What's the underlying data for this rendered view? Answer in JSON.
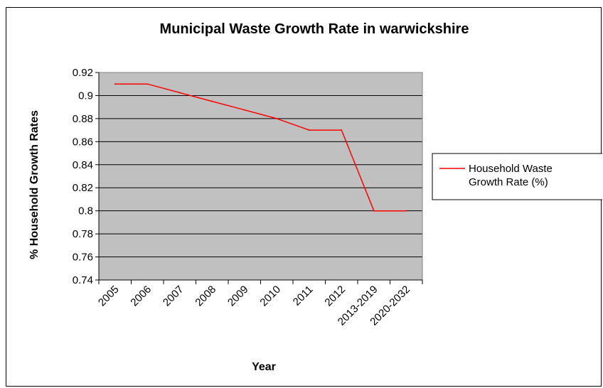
{
  "chart_data": {
    "type": "line",
    "title": "Municipal Waste Growth Rate in warwickshire",
    "xlabel": "Year",
    "ylabel": "% Household Growth Rates",
    "categories": [
      "2005",
      "2006",
      "2007",
      "2008",
      "2009",
      "2010",
      "2011",
      "2012",
      "2013-2019",
      "2020-2032"
    ],
    "series": [
      {
        "name": "Household Waste Growth Rate (%)",
        "name_lines": [
          "Household Waste",
          "Growth Rate (%)"
        ],
        "values": [
          0.91,
          0.91,
          0.9025,
          0.895,
          0.8875,
          0.88,
          0.87,
          0.87,
          0.8,
          0.8
        ],
        "color": "#ff0000"
      }
    ],
    "ylim": [
      0.74,
      0.92
    ],
    "yticks": [
      "0.92",
      "0.9",
      "0.88",
      "0.86",
      "0.84",
      "0.82",
      "0.8",
      "0.78",
      "0.76",
      "0.74"
    ],
    "grid": true,
    "plot_background": "#c0c0c0",
    "legend_position": "right"
  }
}
